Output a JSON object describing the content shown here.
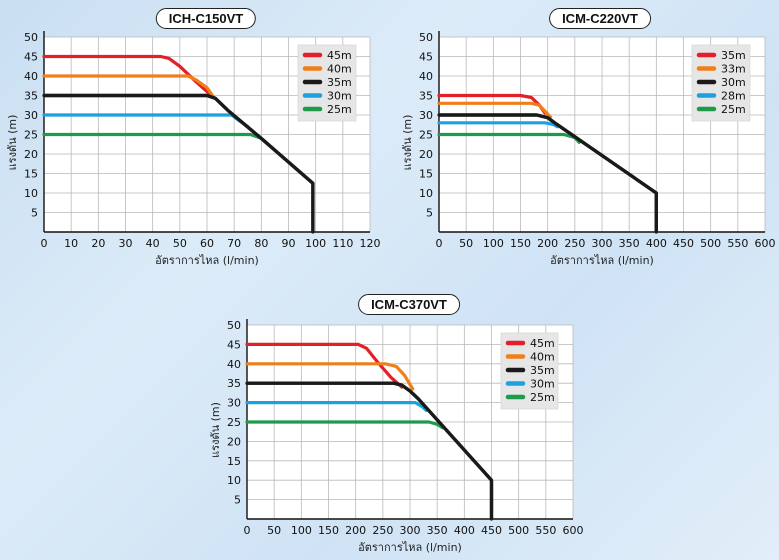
{
  "chart_data": [
    {
      "type": "line",
      "title": "ICH-C150VT",
      "xlabel": "อัตราการไหล (l/min)",
      "ylabel": "แรงดัน (m)",
      "xlim": [
        0,
        120
      ],
      "ylim": [
        0,
        50
      ],
      "xticks": [
        0,
        10,
        20,
        30,
        40,
        50,
        60,
        70,
        80,
        90,
        100,
        110,
        120
      ],
      "yticks": [
        5,
        10,
        15,
        20,
        25,
        30,
        35,
        40,
        45,
        50
      ],
      "grid": true,
      "legend_position": "top-right",
      "series": [
        {
          "name": "45m",
          "color": "#e3202a",
          "x": [
            0,
            43,
            46,
            50,
            56,
            60,
            62
          ],
          "y": [
            45,
            45,
            44.5,
            42.5,
            38.5,
            36,
            35
          ]
        },
        {
          "name": "40m",
          "color": "#f07f1a",
          "x": [
            0,
            53,
            56,
            60,
            62
          ],
          "y": [
            40,
            40,
            39,
            37,
            35
          ]
        },
        {
          "name": "35m",
          "color": "#1a1a1a",
          "x": [
            0,
            60,
            63,
            68,
            80,
            99,
            99,
            99
          ],
          "y": [
            35,
            35,
            34.3,
            31,
            24,
            12.5,
            12.5,
            0
          ]
        },
        {
          "name": "30m",
          "color": "#1ba1e0",
          "x": [
            0,
            69,
            72,
            75
          ],
          "y": [
            30,
            30,
            28.5,
            27
          ]
        },
        {
          "name": "25m",
          "color": "#1f9a4a",
          "x": [
            0,
            76,
            78,
            80
          ],
          "y": [
            25,
            25,
            24.5,
            24
          ]
        }
      ]
    },
    {
      "type": "line",
      "title": "ICM-C220VT",
      "xlabel": "อัตราการไหล (l/min)",
      "ylabel": "แรงดัน (m)",
      "xlim": [
        0,
        600
      ],
      "ylim": [
        0,
        50
      ],
      "xticks": [
        0,
        50,
        100,
        150,
        200,
        250,
        300,
        350,
        400,
        450,
        500,
        550,
        600
      ],
      "yticks": [
        5,
        10,
        15,
        20,
        25,
        30,
        35,
        40,
        45,
        50
      ],
      "grid": true,
      "legend_position": "top-right",
      "series": [
        {
          "name": "35m",
          "color": "#e3202a",
          "x": [
            0,
            150,
            170,
            185,
            195
          ],
          "y": [
            35,
            35,
            34.5,
            32.5,
            30.5
          ]
        },
        {
          "name": "33m",
          "color": "#f07f1a",
          "x": [
            0,
            170,
            185,
            195,
            205
          ],
          "y": [
            33,
            33,
            32.5,
            31,
            29.5
          ]
        },
        {
          "name": "30m",
          "color": "#1a1a1a",
          "x": [
            0,
            180,
            200,
            215,
            400,
            400
          ],
          "y": [
            30,
            30,
            29.3,
            27.8,
            10,
            0
          ]
        },
        {
          "name": "28m",
          "color": "#1ba1e0",
          "x": [
            0,
            195,
            210,
            218
          ],
          "y": [
            28,
            28,
            27.6,
            27
          ]
        },
        {
          "name": "25m",
          "color": "#1f9a4a",
          "x": [
            0,
            230,
            250,
            258
          ],
          "y": [
            25,
            25,
            24.2,
            23
          ]
        }
      ]
    },
    {
      "type": "line",
      "title": "ICM-C370VT",
      "xlabel": "อัตราการไหล (l/min)",
      "ylabel": "แรงดัน (m)",
      "xlim": [
        0,
        600
      ],
      "ylim": [
        0,
        50
      ],
      "xticks": [
        0,
        50,
        100,
        150,
        200,
        250,
        300,
        350,
        400,
        450,
        500,
        550,
        600
      ],
      "yticks": [
        5,
        10,
        15,
        20,
        25,
        30,
        35,
        40,
        45,
        50
      ],
      "grid": true,
      "legend_position": "top-right",
      "series": [
        {
          "name": "45m",
          "color": "#e3202a",
          "x": [
            0,
            205,
            220,
            240,
            265,
            285
          ],
          "y": [
            45,
            45,
            44,
            40.5,
            36.5,
            34
          ]
        },
        {
          "name": "40m",
          "color": "#f07f1a",
          "x": [
            0,
            255,
            275,
            290,
            305
          ],
          "y": [
            40,
            40,
            39.3,
            37,
            33.5
          ]
        },
        {
          "name": "35m",
          "color": "#1a1a1a",
          "x": [
            0,
            270,
            285,
            300,
            315,
            450,
            450
          ],
          "y": [
            35,
            35,
            34.5,
            33,
            31,
            10,
            0
          ]
        },
        {
          "name": "30m",
          "color": "#1ba1e0",
          "x": [
            0,
            310,
            322,
            330
          ],
          "y": [
            30,
            30,
            29,
            28
          ]
        },
        {
          "name": "25m",
          "color": "#1f9a4a",
          "x": [
            0,
            335,
            350,
            360
          ],
          "y": [
            25,
            25,
            24.4,
            23.5
          ]
        }
      ]
    }
  ]
}
